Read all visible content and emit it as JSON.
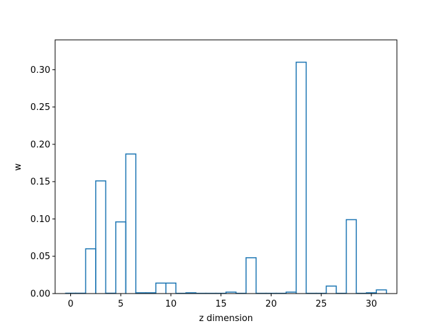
{
  "chart_data": {
    "type": "bar",
    "style": "step-outline",
    "color": "#1f77b4",
    "title": "",
    "xlabel": "z dimension",
    "ylabel": "w",
    "xlim": [
      -1.55,
      32.55
    ],
    "ylim": [
      0,
      0.34
    ],
    "xticks": [
      0,
      5,
      10,
      15,
      20,
      25,
      30
    ],
    "yticks": [
      0.0,
      0.05,
      0.1,
      0.15,
      0.2,
      0.25,
      0.3
    ],
    "ytick_labels": [
      "0.00",
      "0.05",
      "0.10",
      "0.15",
      "0.20",
      "0.25",
      "0.30"
    ],
    "grid": false,
    "x": [
      0,
      1,
      2,
      3,
      4,
      5,
      6,
      7,
      8,
      9,
      10,
      11,
      12,
      13,
      14,
      15,
      16,
      17,
      18,
      19,
      20,
      21,
      22,
      23,
      24,
      25,
      26,
      27,
      28,
      29,
      30,
      31
    ],
    "values": [
      0.0005,
      0.0005,
      0.06,
      0.151,
      0.0005,
      0.096,
      0.187,
      0.001,
      0.001,
      0.014,
      0.014,
      0.0003,
      0.001,
      0.0003,
      0.0003,
      0.0003,
      0.002,
      0.0003,
      0.048,
      0.0003,
      0.0003,
      0.0003,
      0.002,
      0.31,
      0.0003,
      0.0003,
      0.01,
      0.0003,
      0.099,
      0.0003,
      0.001,
      0.005
    ]
  }
}
